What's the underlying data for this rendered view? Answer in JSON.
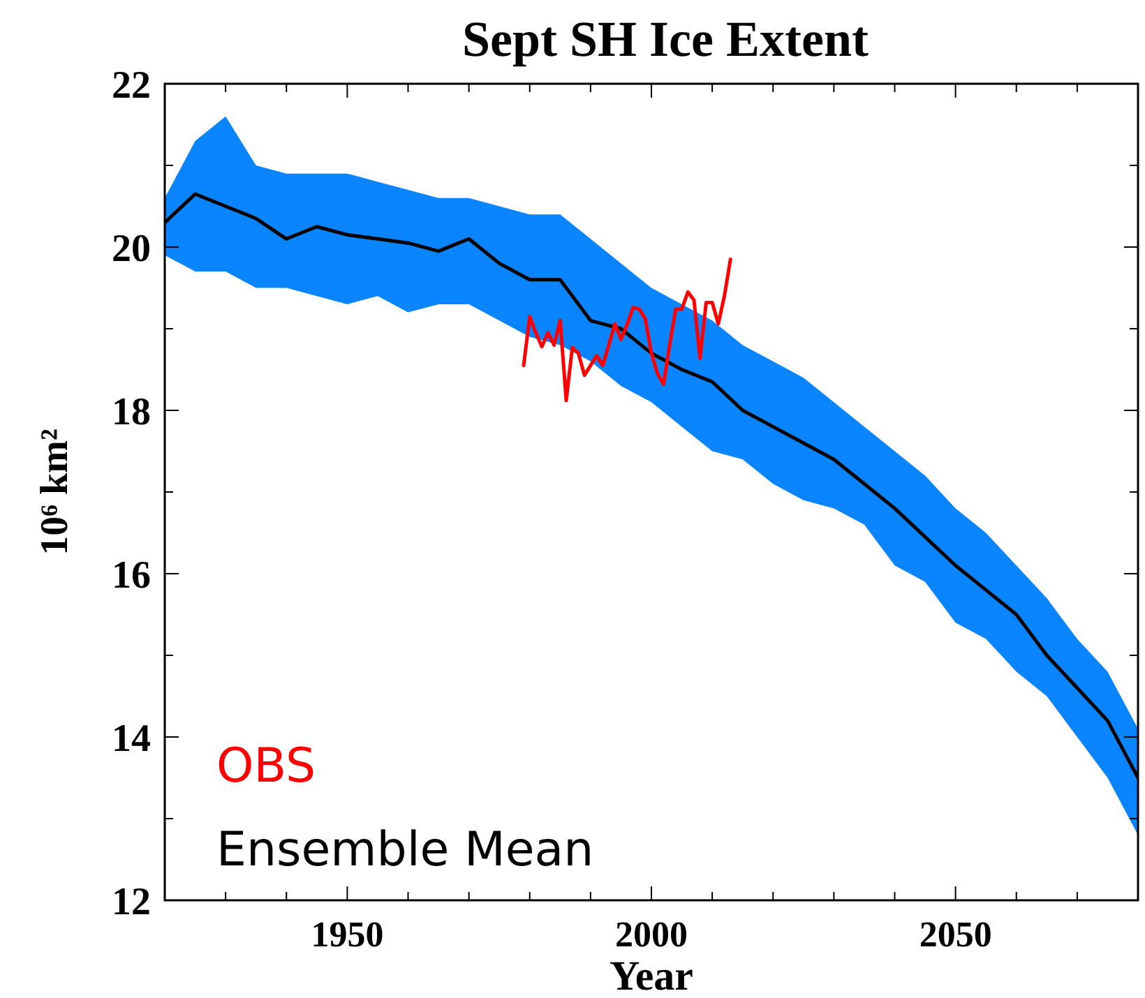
{
  "chart_data": {
    "type": "line",
    "title": "Sept SH Ice Extent",
    "xlabel": "Year",
    "ylabel": "10⁶ km²",
    "xlim": [
      1920,
      2080
    ],
    "xticks": [
      {
        "value": 1920,
        "label": null
      },
      {
        "value": 1930,
        "label": null
      },
      {
        "value": 1940,
        "label": null
      },
      1950,
      {
        "value": 1960,
        "label": null
      },
      {
        "value": 1970,
        "label": null
      },
      {
        "value": 1980,
        "label": null
      },
      {
        "value": 1990,
        "label": null
      },
      2000,
      {
        "value": 2010,
        "label": null
      },
      {
        "value": 2020,
        "label": null
      },
      {
        "value": 2030,
        "label": null
      },
      {
        "value": 2040,
        "label": null
      },
      2050,
      {
        "value": 2060,
        "label": null
      },
      {
        "value": 2070,
        "label": null
      },
      {
        "value": 2080,
        "label": null
      }
    ],
    "ylim": [
      12,
      22
    ],
    "yticks": [
      12,
      {
        "value": 13,
        "label": null
      },
      14,
      {
        "value": 15,
        "label": null
      },
      16,
      {
        "value": 17,
        "label": null
      },
      18,
      {
        "value": 19,
        "label": null
      },
      20,
      {
        "value": 21,
        "label": null
      },
      22
    ],
    "grid": false,
    "legend": "bottom left",
    "line_style": "solid",
    "marker": "none",
    "series": [
      {
        "name": "Ensemble Mean",
        "color": "#000000",
        "x": [
          1920,
          1925,
          1930,
          1935,
          1940,
          1945,
          1950,
          1955,
          1960,
          1965,
          1970,
          1975,
          1980,
          1985,
          1990,
          1995,
          2000,
          2005,
          2010,
          2015,
          2020,
          2025,
          2030,
          2035,
          2040,
          2045,
          2050,
          2055,
          2060,
          2065,
          2070,
          2075,
          2080
        ],
        "values": [
          20.3,
          20.65,
          20.5,
          20.35,
          20.1,
          20.25,
          20.15,
          20.1,
          20.05,
          19.95,
          20.1,
          19.8,
          19.6,
          19.6,
          19.1,
          19.0,
          18.7,
          18.5,
          18.35,
          18.0,
          17.8,
          17.6,
          17.4,
          17.1,
          16.8,
          16.45,
          16.1,
          15.8,
          15.5,
          15.0,
          14.6,
          14.2,
          13.5
        ],
        "lower": [
          19.9,
          19.7,
          19.7,
          19.5,
          19.5,
          19.4,
          19.3,
          19.4,
          19.2,
          19.3,
          19.3,
          19.1,
          18.9,
          18.8,
          18.6,
          18.3,
          18.1,
          17.8,
          17.5,
          17.4,
          17.1,
          16.9,
          16.8,
          16.6,
          16.1,
          15.9,
          15.4,
          15.2,
          14.8,
          14.5,
          14.0,
          13.5,
          12.8
        ],
        "upper": [
          20.6,
          21.3,
          21.6,
          21.0,
          20.9,
          20.9,
          20.9,
          20.8,
          20.7,
          20.6,
          20.6,
          20.5,
          20.4,
          20.4,
          20.1,
          19.8,
          19.5,
          19.3,
          19.1,
          18.8,
          18.6,
          18.4,
          18.1,
          17.8,
          17.5,
          17.2,
          16.8,
          16.5,
          16.1,
          15.7,
          15.2,
          14.8,
          14.1
        ]
      },
      {
        "name": "OBS",
        "color": "#ff0000",
        "x": [
          1979,
          1980,
          1981,
          1982,
          1983,
          1984,
          1985,
          1986,
          1987,
          1988,
          1989,
          1990,
          1991,
          1992,
          1993,
          1994,
          1995,
          1996,
          1997,
          1998,
          1999,
          2000,
          2001,
          2002,
          2003,
          2004,
          2005,
          2006,
          2007,
          2008,
          2009,
          2010,
          2011,
          2012,
          2013
        ],
        "values": [
          18.55,
          19.15,
          18.95,
          18.78,
          18.95,
          18.8,
          19.1,
          18.12,
          18.77,
          18.7,
          18.43,
          18.55,
          18.67,
          18.55,
          18.8,
          19.06,
          18.87,
          19.05,
          19.26,
          19.24,
          19.12,
          18.7,
          18.45,
          18.32,
          18.8,
          19.24,
          19.24,
          19.45,
          19.35,
          18.64,
          19.32,
          19.32,
          19.06,
          19.4,
          19.85
        ]
      }
    ]
  }
}
